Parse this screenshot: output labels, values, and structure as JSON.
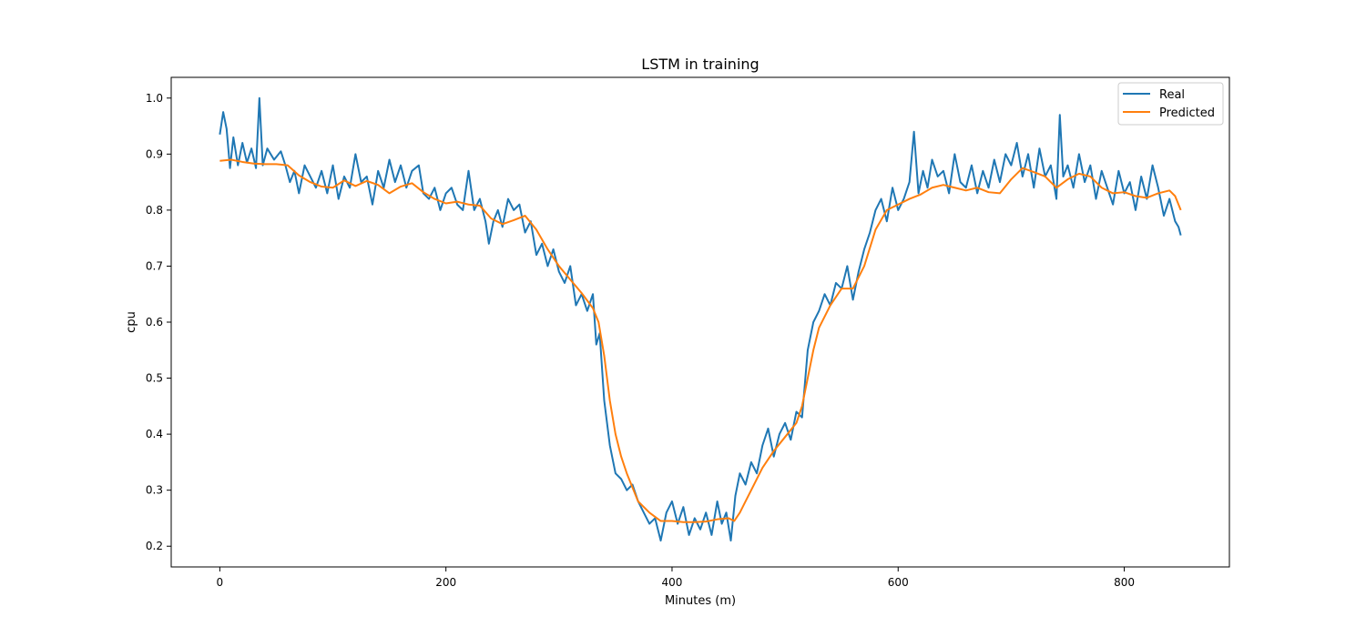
{
  "chart_data": {
    "type": "line",
    "title": "LSTM in training",
    "xlabel": "Minutes (m)",
    "ylabel": "cpu",
    "xlim": [
      -43,
      893
    ],
    "ylim": [
      0.163,
      1.037
    ],
    "xticks": [
      0,
      200,
      400,
      600,
      800
    ],
    "yticks": [
      0.2,
      0.3,
      0.4,
      0.5,
      0.6,
      0.7,
      0.8,
      0.9,
      1.0
    ],
    "xtick_labels": [
      "0",
      "200",
      "400",
      "600",
      "800"
    ],
    "ytick_labels": [
      "0.2",
      "0.3",
      "0.4",
      "0.5",
      "0.6",
      "0.7",
      "0.8",
      "0.9",
      "1.0"
    ],
    "grid": false,
    "legend_position": "top-right",
    "series": [
      {
        "name": "Real",
        "color": "#1f77b4",
        "points": [
          [
            0,
            0.935
          ],
          [
            3,
            0.975
          ],
          [
            6,
            0.945
          ],
          [
            9,
            0.875
          ],
          [
            12,
            0.93
          ],
          [
            16,
            0.88
          ],
          [
            20,
            0.92
          ],
          [
            24,
            0.885
          ],
          [
            28,
            0.91
          ],
          [
            32,
            0.875
          ],
          [
            35,
            1.0
          ],
          [
            38,
            0.88
          ],
          [
            42,
            0.91
          ],
          [
            48,
            0.89
          ],
          [
            54,
            0.905
          ],
          [
            58,
            0.88
          ],
          [
            62,
            0.85
          ],
          [
            66,
            0.87
          ],
          [
            70,
            0.83
          ],
          [
            75,
            0.88
          ],
          [
            80,
            0.86
          ],
          [
            85,
            0.84
          ],
          [
            90,
            0.87
          ],
          [
            95,
            0.83
          ],
          [
            100,
            0.88
          ],
          [
            105,
            0.82
          ],
          [
            110,
            0.86
          ],
          [
            115,
            0.84
          ],
          [
            120,
            0.9
          ],
          [
            125,
            0.85
          ],
          [
            130,
            0.86
          ],
          [
            135,
            0.81
          ],
          [
            140,
            0.87
          ],
          [
            145,
            0.84
          ],
          [
            150,
            0.89
          ],
          [
            155,
            0.85
          ],
          [
            160,
            0.88
          ],
          [
            165,
            0.84
          ],
          [
            170,
            0.87
          ],
          [
            176,
            0.88
          ],
          [
            180,
            0.83
          ],
          [
            185,
            0.82
          ],
          [
            190,
            0.84
          ],
          [
            195,
            0.8
          ],
          [
            200,
            0.83
          ],
          [
            205,
            0.84
          ],
          [
            210,
            0.81
          ],
          [
            215,
            0.8
          ],
          [
            220,
            0.87
          ],
          [
            225,
            0.8
          ],
          [
            230,
            0.82
          ],
          [
            235,
            0.78
          ],
          [
            238,
            0.74
          ],
          [
            242,
            0.78
          ],
          [
            246,
            0.8
          ],
          [
            250,
            0.77
          ],
          [
            255,
            0.82
          ],
          [
            260,
            0.8
          ],
          [
            265,
            0.81
          ],
          [
            270,
            0.76
          ],
          [
            275,
            0.78
          ],
          [
            280,
            0.72
          ],
          [
            285,
            0.74
          ],
          [
            290,
            0.7
          ],
          [
            295,
            0.73
          ],
          [
            300,
            0.69
          ],
          [
            305,
            0.67
          ],
          [
            310,
            0.7
          ],
          [
            315,
            0.63
          ],
          [
            320,
            0.65
          ],
          [
            325,
            0.62
          ],
          [
            330,
            0.65
          ],
          [
            333,
            0.56
          ],
          [
            336,
            0.58
          ],
          [
            340,
            0.46
          ],
          [
            345,
            0.38
          ],
          [
            350,
            0.33
          ],
          [
            355,
            0.32
          ],
          [
            360,
            0.3
          ],
          [
            365,
            0.31
          ],
          [
            370,
            0.28
          ],
          [
            375,
            0.26
          ],
          [
            380,
            0.24
          ],
          [
            385,
            0.25
          ],
          [
            390,
            0.21
          ],
          [
            395,
            0.26
          ],
          [
            400,
            0.28
          ],
          [
            405,
            0.24
          ],
          [
            410,
            0.27
          ],
          [
            415,
            0.22
          ],
          [
            420,
            0.25
          ],
          [
            425,
            0.23
          ],
          [
            430,
            0.26
          ],
          [
            435,
            0.22
          ],
          [
            440,
            0.28
          ],
          [
            444,
            0.24
          ],
          [
            448,
            0.26
          ],
          [
            452,
            0.21
          ],
          [
            456,
            0.29
          ],
          [
            460,
            0.33
          ],
          [
            465,
            0.31
          ],
          [
            470,
            0.35
          ],
          [
            475,
            0.33
          ],
          [
            480,
            0.38
          ],
          [
            485,
            0.41
          ],
          [
            490,
            0.36
          ],
          [
            495,
            0.4
          ],
          [
            500,
            0.42
          ],
          [
            505,
            0.39
          ],
          [
            510,
            0.44
          ],
          [
            515,
            0.43
          ],
          [
            520,
            0.55
          ],
          [
            525,
            0.6
          ],
          [
            530,
            0.62
          ],
          [
            535,
            0.65
          ],
          [
            540,
            0.63
          ],
          [
            545,
            0.67
          ],
          [
            550,
            0.66
          ],
          [
            555,
            0.7
          ],
          [
            560,
            0.64
          ],
          [
            565,
            0.69
          ],
          [
            570,
            0.73
          ],
          [
            575,
            0.76
          ],
          [
            580,
            0.8
          ],
          [
            585,
            0.82
          ],
          [
            590,
            0.78
          ],
          [
            595,
            0.84
          ],
          [
            600,
            0.8
          ],
          [
            605,
            0.82
          ],
          [
            610,
            0.85
          ],
          [
            614,
            0.94
          ],
          [
            618,
            0.83
          ],
          [
            622,
            0.87
          ],
          [
            626,
            0.84
          ],
          [
            630,
            0.89
          ],
          [
            635,
            0.86
          ],
          [
            640,
            0.87
          ],
          [
            645,
            0.83
          ],
          [
            650,
            0.9
          ],
          [
            655,
            0.85
          ],
          [
            660,
            0.84
          ],
          [
            665,
            0.88
          ],
          [
            670,
            0.83
          ],
          [
            675,
            0.87
          ],
          [
            680,
            0.84
          ],
          [
            685,
            0.89
          ],
          [
            690,
            0.85
          ],
          [
            695,
            0.9
          ],
          [
            700,
            0.88
          ],
          [
            705,
            0.92
          ],
          [
            710,
            0.86
          ],
          [
            715,
            0.9
          ],
          [
            720,
            0.84
          ],
          [
            725,
            0.91
          ],
          [
            730,
            0.86
          ],
          [
            735,
            0.88
          ],
          [
            740,
            0.82
          ],
          [
            743,
            0.97
          ],
          [
            746,
            0.86
          ],
          [
            750,
            0.88
          ],
          [
            755,
            0.84
          ],
          [
            760,
            0.9
          ],
          [
            765,
            0.85
          ],
          [
            770,
            0.88
          ],
          [
            775,
            0.82
          ],
          [
            780,
            0.87
          ],
          [
            785,
            0.84
          ],
          [
            790,
            0.81
          ],
          [
            795,
            0.87
          ],
          [
            800,
            0.83
          ],
          [
            805,
            0.85
          ],
          [
            810,
            0.8
          ],
          [
            815,
            0.86
          ],
          [
            820,
            0.82
          ],
          [
            825,
            0.88
          ],
          [
            830,
            0.84
          ],
          [
            835,
            0.79
          ],
          [
            840,
            0.82
          ],
          [
            845,
            0.78
          ],
          [
            848,
            0.77
          ],
          [
            850,
            0.755
          ]
        ]
      },
      {
        "name": "Predicted",
        "color": "#ff7f0e",
        "points": [
          [
            0,
            0.888
          ],
          [
            10,
            0.89
          ],
          [
            20,
            0.886
          ],
          [
            30,
            0.883
          ],
          [
            40,
            0.882
          ],
          [
            50,
            0.882
          ],
          [
            60,
            0.88
          ],
          [
            70,
            0.862
          ],
          [
            80,
            0.85
          ],
          [
            90,
            0.842
          ],
          [
            100,
            0.84
          ],
          [
            110,
            0.853
          ],
          [
            120,
            0.843
          ],
          [
            130,
            0.852
          ],
          [
            140,
            0.845
          ],
          [
            150,
            0.83
          ],
          [
            160,
            0.842
          ],
          [
            170,
            0.848
          ],
          [
            180,
            0.832
          ],
          [
            190,
            0.82
          ],
          [
            200,
            0.812
          ],
          [
            210,
            0.815
          ],
          [
            220,
            0.81
          ],
          [
            230,
            0.808
          ],
          [
            240,
            0.785
          ],
          [
            250,
            0.775
          ],
          [
            260,
            0.782
          ],
          [
            270,
            0.79
          ],
          [
            280,
            0.765
          ],
          [
            290,
            0.73
          ],
          [
            300,
            0.7
          ],
          [
            310,
            0.676
          ],
          [
            320,
            0.652
          ],
          [
            330,
            0.625
          ],
          [
            335,
            0.6
          ],
          [
            340,
            0.54
          ],
          [
            345,
            0.46
          ],
          [
            350,
            0.4
          ],
          [
            355,
            0.36
          ],
          [
            360,
            0.33
          ],
          [
            365,
            0.305
          ],
          [
            370,
            0.28
          ],
          [
            380,
            0.26
          ],
          [
            390,
            0.245
          ],
          [
            400,
            0.245
          ],
          [
            410,
            0.243
          ],
          [
            420,
            0.243
          ],
          [
            430,
            0.244
          ],
          [
            440,
            0.248
          ],
          [
            450,
            0.25
          ],
          [
            455,
            0.245
          ],
          [
            460,
            0.26
          ],
          [
            465,
            0.28
          ],
          [
            470,
            0.3
          ],
          [
            480,
            0.34
          ],
          [
            490,
            0.37
          ],
          [
            500,
            0.395
          ],
          [
            510,
            0.42
          ],
          [
            515,
            0.45
          ],
          [
            520,
            0.5
          ],
          [
            525,
            0.55
          ],
          [
            530,
            0.59
          ],
          [
            540,
            0.63
          ],
          [
            550,
            0.66
          ],
          [
            560,
            0.66
          ],
          [
            570,
            0.7
          ],
          [
            580,
            0.765
          ],
          [
            590,
            0.8
          ],
          [
            600,
            0.81
          ],
          [
            610,
            0.82
          ],
          [
            620,
            0.828
          ],
          [
            630,
            0.84
          ],
          [
            640,
            0.845
          ],
          [
            650,
            0.84
          ],
          [
            660,
            0.835
          ],
          [
            670,
            0.84
          ],
          [
            680,
            0.832
          ],
          [
            690,
            0.83
          ],
          [
            700,
            0.855
          ],
          [
            710,
            0.875
          ],
          [
            720,
            0.868
          ],
          [
            730,
            0.86
          ],
          [
            740,
            0.84
          ],
          [
            750,
            0.855
          ],
          [
            760,
            0.865
          ],
          [
            770,
            0.86
          ],
          [
            780,
            0.84
          ],
          [
            790,
            0.83
          ],
          [
            800,
            0.832
          ],
          [
            810,
            0.825
          ],
          [
            820,
            0.822
          ],
          [
            830,
            0.83
          ],
          [
            840,
            0.835
          ],
          [
            845,
            0.825
          ],
          [
            850,
            0.8
          ]
        ]
      }
    ]
  }
}
